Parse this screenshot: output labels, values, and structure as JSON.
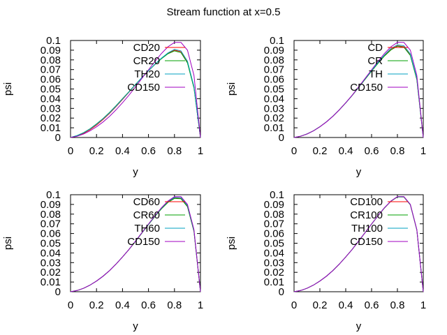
{
  "figure": {
    "title": "Stream function at x=0.5"
  },
  "chart_data": [
    {
      "type": "line",
      "xlabel": "y",
      "ylabel": "psi",
      "xlim": [
        0,
        1
      ],
      "ylim": [
        0,
        0.1
      ],
      "xticks": [
        "0",
        "0.2",
        "0.4",
        "0.6",
        "0.8",
        "1"
      ],
      "yticks": [
        "0",
        "0.01",
        "0.02",
        "0.03",
        "0.04",
        "0.05",
        "0.06",
        "0.07",
        "0.08",
        "0.09",
        "0.1"
      ],
      "grid": false,
      "legend_position": "top-right",
      "x": [
        0,
        0.05,
        0.1,
        0.15,
        0.2,
        0.25,
        0.3,
        0.35,
        0.4,
        0.45,
        0.5,
        0.55,
        0.6,
        0.65,
        0.7,
        0.75,
        0.8,
        0.85,
        0.9,
        0.95,
        1.0
      ],
      "series": [
        {
          "name": "CD20",
          "color": "#ff0000",
          "values": [
            0,
            0.0016,
            0.0042,
            0.008,
            0.0128,
            0.0185,
            0.0248,
            0.0318,
            0.0392,
            0.0467,
            0.0543,
            0.0617,
            0.0688,
            0.0754,
            0.0815,
            0.0867,
            0.09,
            0.0885,
            0.078,
            0.052,
            0
          ]
        },
        {
          "name": "CR20",
          "color": "#00a000",
          "values": [
            0,
            0.002,
            0.005,
            0.009,
            0.014,
            0.0195,
            0.0258,
            0.0327,
            0.04,
            0.0473,
            0.0547,
            0.0619,
            0.0688,
            0.0753,
            0.0812,
            0.0863,
            0.0893,
            0.0875,
            0.0768,
            0.051,
            0
          ]
        },
        {
          "name": "TH20",
          "color": "#00a0c0",
          "values": [
            0,
            0.0019,
            0.0048,
            0.0088,
            0.0137,
            0.0192,
            0.0255,
            0.0324,
            0.0397,
            0.047,
            0.0545,
            0.0618,
            0.0689,
            0.0756,
            0.0818,
            0.0872,
            0.0908,
            0.0893,
            0.0786,
            0.0525,
            0
          ]
        },
        {
          "name": "CD150",
          "color": "#a000c0",
          "values": [
            0,
            0.0012,
            0.0035,
            0.0068,
            0.011,
            0.016,
            0.0218,
            0.0285,
            0.0358,
            0.0437,
            0.0522,
            0.061,
            0.0698,
            0.0785,
            0.0866,
            0.0935,
            0.098,
            0.098,
            0.09,
            0.064,
            0
          ]
        }
      ]
    },
    {
      "type": "line",
      "xlabel": "y",
      "ylabel": "psi",
      "xlim": [
        0,
        1
      ],
      "ylim": [
        0,
        0.1
      ],
      "xticks": [
        "0",
        "0.2",
        "0.4",
        "0.6",
        "0.8",
        "1"
      ],
      "yticks": [
        "0",
        "0.01",
        "0.02",
        "0.03",
        "0.04",
        "0.05",
        "0.06",
        "0.07",
        "0.08",
        "0.09",
        "0.1"
      ],
      "grid": false,
      "legend_position": "top-right",
      "x": [
        0,
        0.05,
        0.1,
        0.15,
        0.2,
        0.25,
        0.3,
        0.35,
        0.4,
        0.45,
        0.5,
        0.55,
        0.6,
        0.65,
        0.7,
        0.75,
        0.8,
        0.85,
        0.9,
        0.95,
        1.0
      ],
      "series": [
        {
          "name": "CD",
          "color": "#ff0000",
          "values": [
            0,
            0.0013,
            0.0036,
            0.0069,
            0.0111,
            0.0161,
            0.0219,
            0.0285,
            0.0357,
            0.0434,
            0.0516,
            0.0601,
            0.0686,
            0.0768,
            0.0844,
            0.0908,
            0.0945,
            0.0935,
            0.085,
            0.06,
            0
          ]
        },
        {
          "name": "CR",
          "color": "#00a000",
          "values": [
            0,
            0.0013,
            0.0036,
            0.0069,
            0.0111,
            0.0161,
            0.0219,
            0.0285,
            0.0357,
            0.0434,
            0.0516,
            0.06,
            0.0684,
            0.0765,
            0.084,
            0.0903,
            0.094,
            0.093,
            0.0845,
            0.0597,
            0
          ]
        },
        {
          "name": "TH",
          "color": "#00a0c0",
          "values": [
            0,
            0.0013,
            0.0036,
            0.0069,
            0.0111,
            0.0161,
            0.0219,
            0.0285,
            0.0357,
            0.0435,
            0.0518,
            0.0604,
            0.069,
            0.0773,
            0.0851,
            0.0917,
            0.0955,
            0.0946,
            0.0862,
            0.061,
            0
          ]
        },
        {
          "name": "CD150",
          "color": "#a000c0",
          "values": [
            0,
            0.0012,
            0.0035,
            0.0068,
            0.011,
            0.016,
            0.0218,
            0.0285,
            0.0358,
            0.0437,
            0.0522,
            0.061,
            0.0698,
            0.0785,
            0.0866,
            0.0935,
            0.098,
            0.098,
            0.09,
            0.064,
            0
          ]
        }
      ]
    },
    {
      "type": "line",
      "xlabel": "y",
      "ylabel": "psi",
      "xlim": [
        0,
        1
      ],
      "ylim": [
        0,
        0.1
      ],
      "xticks": [
        "0",
        "0.2",
        "0.4",
        "0.6",
        "0.8",
        "1"
      ],
      "yticks": [
        "0",
        "0.01",
        "0.02",
        "0.03",
        "0.04",
        "0.05",
        "0.06",
        "0.07",
        "0.08",
        "0.09",
        "0.1"
      ],
      "grid": false,
      "legend_position": "top-right",
      "x": [
        0,
        0.05,
        0.1,
        0.15,
        0.2,
        0.25,
        0.3,
        0.35,
        0.4,
        0.45,
        0.5,
        0.55,
        0.6,
        0.65,
        0.7,
        0.75,
        0.8,
        0.85,
        0.9,
        0.95,
        1.0
      ],
      "series": [
        {
          "name": "CD60",
          "color": "#ff0000",
          "values": [
            0,
            0.0012,
            0.0035,
            0.0068,
            0.011,
            0.016,
            0.0218,
            0.0285,
            0.0358,
            0.0436,
            0.052,
            0.0607,
            0.0694,
            0.0779,
            0.0858,
            0.0925,
            0.0966,
            0.0962,
            0.088,
            0.0625,
            0
          ]
        },
        {
          "name": "CR60",
          "color": "#00a000",
          "values": [
            0,
            0.0012,
            0.0035,
            0.0068,
            0.011,
            0.016,
            0.0218,
            0.0285,
            0.0358,
            0.0436,
            0.0519,
            0.0606,
            0.0692,
            0.0776,
            0.0855,
            0.0921,
            0.0962,
            0.0958,
            0.0876,
            0.0622,
            0
          ]
        },
        {
          "name": "TH60",
          "color": "#00a0c0",
          "values": [
            0,
            0.0012,
            0.0035,
            0.0068,
            0.011,
            0.016,
            0.0218,
            0.0285,
            0.0358,
            0.0437,
            0.0521,
            0.0609,
            0.0696,
            0.0782,
            0.0862,
            0.093,
            0.0972,
            0.097,
            0.089,
            0.0632,
            0
          ]
        },
        {
          "name": "CD150",
          "color": "#a000c0",
          "values": [
            0,
            0.0012,
            0.0035,
            0.0068,
            0.011,
            0.016,
            0.0218,
            0.0285,
            0.0358,
            0.0437,
            0.0522,
            0.061,
            0.0698,
            0.0785,
            0.0866,
            0.0935,
            0.098,
            0.098,
            0.09,
            0.064,
            0
          ]
        }
      ]
    },
    {
      "type": "line",
      "xlabel": "y",
      "ylabel": "psi",
      "xlim": [
        0,
        1
      ],
      "ylim": [
        0,
        0.1
      ],
      "xticks": [
        "0",
        "0.2",
        "0.4",
        "0.6",
        "0.8",
        "1"
      ],
      "yticks": [
        "0",
        "0.01",
        "0.02",
        "0.03",
        "0.04",
        "0.05",
        "0.06",
        "0.07",
        "0.08",
        "0.09",
        "0.1"
      ],
      "grid": false,
      "legend_position": "top-right",
      "x": [
        0,
        0.05,
        0.1,
        0.15,
        0.2,
        0.25,
        0.3,
        0.35,
        0.4,
        0.45,
        0.5,
        0.55,
        0.6,
        0.65,
        0.7,
        0.75,
        0.8,
        0.85,
        0.9,
        0.95,
        1.0
      ],
      "series": [
        {
          "name": "CD100",
          "color": "#ff0000",
          "values": [
            0,
            0.0012,
            0.0035,
            0.0068,
            0.011,
            0.016,
            0.0218,
            0.0285,
            0.0358,
            0.0437,
            0.0522,
            0.061,
            0.0698,
            0.0784,
            0.0865,
            0.0934,
            0.0979,
            0.0978,
            0.0898,
            0.0638,
            0
          ]
        },
        {
          "name": "CR100",
          "color": "#00a000",
          "values": [
            0,
            0.0012,
            0.0035,
            0.0068,
            0.011,
            0.016,
            0.0218,
            0.0285,
            0.0358,
            0.0437,
            0.0522,
            0.061,
            0.0697,
            0.0783,
            0.0864,
            0.0933,
            0.0977,
            0.0976,
            0.0896,
            0.0637,
            0
          ]
        },
        {
          "name": "TH100",
          "color": "#00a0c0",
          "values": [
            0,
            0.0012,
            0.0035,
            0.0068,
            0.011,
            0.016,
            0.0218,
            0.0285,
            0.0358,
            0.0437,
            0.0522,
            0.061,
            0.0698,
            0.0785,
            0.0866,
            0.0935,
            0.098,
            0.0979,
            0.0899,
            0.0639,
            0
          ]
        },
        {
          "name": "CD150",
          "color": "#a000c0",
          "values": [
            0,
            0.0012,
            0.0035,
            0.0068,
            0.011,
            0.016,
            0.0218,
            0.0285,
            0.0358,
            0.0437,
            0.0522,
            0.061,
            0.0698,
            0.0785,
            0.0866,
            0.0935,
            0.098,
            0.098,
            0.09,
            0.064,
            0
          ]
        }
      ]
    }
  ]
}
